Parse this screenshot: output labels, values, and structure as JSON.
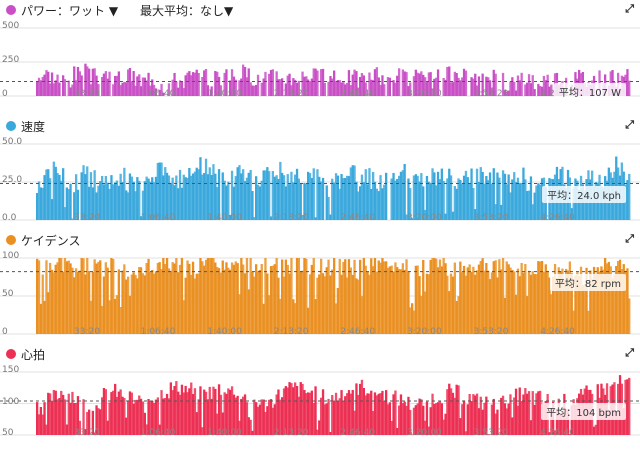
{
  "panels": [
    {
      "key": "power",
      "title": "パワー：ワット ▼",
      "subtitle": "最大平均：なし▼",
      "color": "#c94fc6",
      "y_ticks": [
        "500",
        "250",
        "0"
      ],
      "y_max": 500,
      "avg_label": "平均：107 W",
      "avg_value": 107,
      "x_ticks": [
        "33:20",
        "1:06:40",
        "1:40:00",
        "2:13:20",
        "2:46:40",
        "3:20:00",
        "3:53:20",
        "4:26:40"
      ],
      "chart_data": {
        "type": "area",
        "title": "パワー：ワット",
        "xlabel": "",
        "ylabel": "W",
        "ylim": [
          0,
          500
        ],
        "x_ticks": [
          "33:20",
          "1:06:40",
          "1:40:00",
          "2:13:20",
          "2:46:40",
          "3:20:00",
          "3:53:20",
          "4:26:40"
        ],
        "average": 107,
        "values": [
          150,
          160,
          140,
          120,
          130,
          160,
          175,
          140,
          150,
          165,
          120,
          135,
          145,
          125,
          110,
          140,
          100,
          90,
          115,
          120,
          140,
          150,
          130,
          120,
          145,
          135,
          150,
          170,
          160,
          145,
          150,
          140,
          155,
          130,
          140,
          150,
          165,
          150,
          135,
          140,
          120,
          145,
          135,
          125,
          130,
          150,
          140,
          130,
          160,
          145,
          120,
          130,
          110,
          125,
          140,
          150,
          130,
          135,
          110,
          120,
          140,
          130,
          100,
          90,
          105,
          130,
          140,
          115,
          120,
          130,
          150,
          140,
          135,
          140,
          115,
          120,
          145,
          130,
          120,
          135
        ]
      }
    },
    {
      "key": "speed",
      "title": "速度",
      "subtitle": "",
      "color": "#3aa8dc",
      "y_ticks": [
        "50.0",
        "25.0",
        "0.0"
      ],
      "y_max": 50,
      "avg_label": "平均：24.0 kph",
      "avg_value": 24.0,
      "x_ticks": [
        "33:20",
        "1:06:40",
        "1:40:00",
        "2:13:20",
        "2:46:40",
        "3:20:00",
        "3:53:20",
        "4:26:40"
      ],
      "chart_data": {
        "type": "area",
        "title": "速度",
        "xlabel": "",
        "ylabel": "kph",
        "ylim": [
          0,
          50
        ],
        "x_ticks": [
          "33:20",
          "1:06:40",
          "1:40:00",
          "2:13:20",
          "2:46:40",
          "3:20:00",
          "3:53:20",
          "4:26:40"
        ],
        "average": 24.0,
        "values": [
          24,
          30,
          35,
          28,
          26,
          25,
          30,
          28,
          24,
          26,
          30,
          28,
          25,
          22,
          26,
          30,
          33,
          31,
          28,
          26,
          31,
          34,
          35,
          30,
          28,
          25,
          28,
          30,
          26,
          24,
          28,
          30,
          32,
          28,
          25,
          27,
          30,
          28,
          26,
          22,
          26,
          28,
          30,
          25,
          28,
          27,
          24,
          26,
          28,
          30,
          24,
          26,
          25,
          28,
          30,
          27,
          25,
          26,
          28,
          30,
          27,
          28,
          26,
          25,
          27,
          28,
          26,
          24,
          22,
          27,
          30,
          28,
          26,
          25,
          28,
          27,
          25,
          28,
          36,
          30
        ]
      }
    },
    {
      "key": "cadence",
      "title": "ケイデンス",
      "subtitle": "",
      "color": "#ea9022",
      "y_ticks": [
        "100",
        "50",
        "0"
      ],
      "y_max": 100,
      "avg_label": "平均：82 rpm",
      "avg_value": 82,
      "x_ticks": [
        "33:20",
        "1:06:40",
        "1:40:00",
        "2:13:20",
        "2:46:40",
        "3:20:00",
        "3:53:20",
        "4:26:40"
      ],
      "chart_data": {
        "type": "area",
        "title": "ケイデンス",
        "xlabel": "",
        "ylabel": "rpm",
        "ylim": [
          0,
          100
        ],
        "x_ticks": [
          "33:20",
          "1:06:40",
          "1:40:00",
          "2:13:20",
          "2:46:40",
          "3:20:00",
          "3:53:20",
          "4:26:40"
        ],
        "average": 82,
        "values": [
          88,
          90,
          86,
          92,
          88,
          85,
          90,
          92,
          88,
          86,
          90,
          88,
          85,
          80,
          84,
          88,
          92,
          94,
          96,
          90,
          88,
          86,
          90,
          94,
          92,
          88,
          86,
          90,
          92,
          88,
          90,
          92,
          88,
          86,
          90,
          94,
          92,
          88,
          86,
          90,
          92,
          88,
          86,
          84,
          90,
          92,
          88,
          86,
          90,
          92,
          88,
          86,
          90,
          94,
          92,
          88,
          86,
          90,
          92,
          88,
          86,
          84,
          88,
          90,
          92,
          88,
          86,
          90,
          92,
          88,
          86,
          84,
          80,
          78,
          82,
          85,
          88,
          86,
          84,
          86
        ]
      }
    },
    {
      "key": "heart",
      "title": "心拍",
      "subtitle": "",
      "color": "#ec2f52",
      "y_ticks": [
        "150",
        "100",
        "50"
      ],
      "y_max": 150,
      "y_min": 50,
      "avg_label": "平均：104 bpm",
      "avg_value": 104,
      "x_ticks": [
        "33:20",
        "1:06:40",
        "1:40:00",
        "2:13:20",
        "2:46:40",
        "3:20:00",
        "3:53:20",
        "4:26:40"
      ],
      "chart_data": {
        "type": "area",
        "title": "心拍",
        "xlabel": "",
        "ylabel": "bpm",
        "ylim": [
          50,
          150
        ],
        "x_ticks": [
          "33:20",
          "1:06:40",
          "1:40:00",
          "2:13:20",
          "2:46:40",
          "3:20:00",
          "3:53:20",
          "4:26:40"
        ],
        "average": 104,
        "values": [
          96,
          104,
          110,
          118,
          115,
          108,
          100,
          96,
          104,
          112,
          118,
          114,
          110,
          104,
          98,
          108,
          116,
          120,
          124,
          126,
          122,
          118,
          114,
          118,
          124,
          126,
          120,
          115,
          110,
          104,
          98,
          102,
          112,
          120,
          124,
          122,
          118,
          114,
          110,
          106,
          112,
          118,
          122,
          126,
          124,
          120,
          116,
          112,
          108,
          104,
          100,
          98,
          104,
          108,
          114,
          118,
          116,
          112,
          108,
          104,
          100,
          96,
          100,
          106,
          110,
          114,
          112,
          108,
          104,
          100,
          98,
          102,
          106,
          110,
          116,
          120,
          124,
          128,
          132,
          130
        ]
      }
    }
  ]
}
